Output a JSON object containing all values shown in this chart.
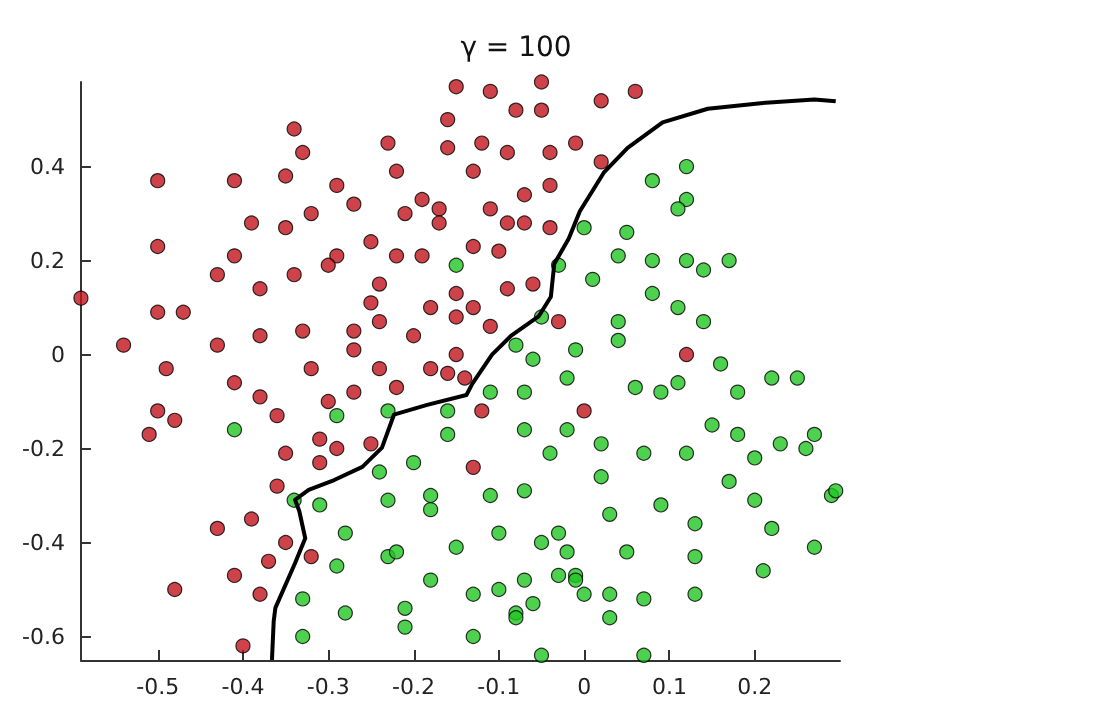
{
  "chart_data": {
    "type": "scatter",
    "title": "γ = 100",
    "xlim": [
      -0.59,
      0.3
    ],
    "ylim": [
      -0.65,
      0.58
    ],
    "xticks": [
      -0.5,
      -0.4,
      -0.3,
      -0.2,
      -0.1,
      0,
      0.1,
      0.2
    ],
    "yticks": [
      -0.6,
      -0.4,
      -0.2,
      0,
      0.2,
      0.4
    ],
    "grid": false,
    "marker": "circle",
    "series": [
      {
        "color": "#c0141c",
        "x": [
          -0.15,
          -0.16,
          -0.16,
          -0.34,
          -0.33,
          -0.23,
          -0.22,
          -0.5,
          -0.41,
          -0.35,
          -0.29,
          -0.27,
          -0.32,
          -0.21,
          -0.19,
          -0.17,
          -0.17,
          -0.39,
          -0.35,
          -0.5,
          -0.41,
          -0.25,
          -0.22,
          -0.19,
          -0.29,
          -0.3,
          -0.43,
          -0.34,
          -0.38,
          -0.24,
          -0.59,
          -0.25,
          -0.15,
          -0.5,
          -0.47,
          -0.18,
          -0.15,
          -0.24,
          -0.54,
          -0.43,
          -0.38,
          -0.33,
          -0.27,
          -0.27,
          -0.2,
          -0.15,
          -0.05,
          0.06,
          -0.11,
          0.02,
          -0.08,
          -0.05,
          -0.12,
          -0.01,
          -0.09,
          -0.04,
          0.02,
          -0.13,
          -0.07,
          -0.04,
          -0.11,
          -0.09,
          -0.07,
          -0.04,
          -0.13,
          -0.1,
          -0.09,
          -0.06,
          -0.13,
          -0.11,
          -0.03,
          0.12,
          -0.49,
          -0.32,
          -0.24,
          -0.18,
          -0.16,
          -0.14,
          -0.41,
          -0.38,
          -0.3,
          -0.27,
          -0.22,
          -0.5,
          -0.48,
          -0.51,
          -0.36,
          -0.31,
          -0.29,
          -0.35,
          -0.31,
          -0.25,
          -0.36,
          -0.39,
          -0.43,
          -0.35,
          -0.37,
          -0.32,
          -0.41,
          -0.48,
          -0.38,
          -0.4,
          -0.12,
          0,
          -0.13
        ],
        "values": [
          0.57,
          0.5,
          0.44,
          0.48,
          0.43,
          0.45,
          0.39,
          0.37,
          0.37,
          0.38,
          0.36,
          0.32,
          0.3,
          0.3,
          0.33,
          0.31,
          0.28,
          0.28,
          0.27,
          0.23,
          0.21,
          0.24,
          0.21,
          0.21,
          0.21,
          0.19,
          0.17,
          0.17,
          0.14,
          0.15,
          0.12,
          0.11,
          0.13,
          0.09,
          0.09,
          0.1,
          0.08,
          0.07,
          0.02,
          0.02,
          0.04,
          0.05,
          0.05,
          0.01,
          0.04,
          0,
          0.58,
          0.56,
          0.56,
          0.54,
          0.52,
          0.52,
          0.45,
          0.45,
          0.43,
          0.43,
          0.41,
          0.39,
          0.34,
          0.36,
          0.31,
          0.28,
          0.28,
          0.27,
          0.23,
          0.22,
          0.14,
          0.15,
          0.1,
          0.06,
          0.07,
          0,
          -0.03,
          -0.03,
          -0.03,
          -0.03,
          -0.04,
          -0.05,
          -0.06,
          -0.09,
          -0.1,
          -0.08,
          -0.07,
          -0.12,
          -0.14,
          -0.17,
          -0.13,
          -0.18,
          -0.2,
          -0.21,
          -0.23,
          -0.19,
          -0.28,
          -0.35,
          -0.37,
          -0.4,
          -0.44,
          -0.43,
          -0.47,
          -0.5,
          -0.51,
          -0.62,
          -0.12,
          -0.12,
          -0.24
        ]
      },
      {
        "color": "#22c622",
        "x": [
          -0.15,
          0.12,
          0.08,
          0.12,
          0.11,
          0,
          0.05,
          0.04,
          0.08,
          0.12,
          0.17,
          0.14,
          -0.03,
          0.01,
          0.08,
          0.11,
          0.14,
          0.04,
          0.04,
          -0.05,
          -0.08,
          -0.06,
          -0.01,
          -0.29,
          -0.23,
          -0.16,
          -0.16,
          -0.41,
          -0.24,
          -0.2,
          -0.18,
          -0.18,
          -0.23,
          -0.31,
          -0.34,
          -0.28,
          -0.23,
          -0.22,
          -0.29,
          -0.18,
          -0.15,
          -0.33,
          -0.28,
          -0.21,
          -0.21,
          -0.33,
          0.16,
          0.22,
          0.25,
          -0.02,
          0.06,
          0.09,
          0.11,
          0.18,
          -0.11,
          -0.07,
          -0.07,
          -0.02,
          0.15,
          0.18,
          0.27,
          0.23,
          0.26,
          0.02,
          0.07,
          0.12,
          0.2,
          -0.04,
          0.02,
          0.17,
          -0.11,
          -0.07,
          0.29,
          0.295,
          0.09,
          0.2,
          0.03,
          0.13,
          0.22,
          -0.1,
          -0.03,
          -0.05,
          -0.02,
          0.05,
          0.13,
          0.27,
          0.21,
          -0.03,
          -0.01,
          -0.01,
          -0.07,
          0,
          -0.1,
          -0.13,
          0.03,
          0.07,
          0.13,
          -0.06,
          -0.08,
          -0.08,
          0.03,
          -0.13,
          -0.05,
          0.07
        ],
        "values": [
          0.19,
          0.4,
          0.37,
          0.33,
          0.31,
          0.27,
          0.26,
          0.21,
          0.2,
          0.2,
          0.2,
          0.18,
          0.19,
          0.16,
          0.13,
          0.1,
          0.07,
          0.07,
          0.03,
          0.08,
          0.02,
          -0.01,
          0.01,
          -0.13,
          -0.12,
          -0.12,
          -0.17,
          -0.16,
          -0.25,
          -0.23,
          -0.3,
          -0.33,
          -0.31,
          -0.32,
          -0.31,
          -0.38,
          -0.43,
          -0.42,
          -0.45,
          -0.48,
          -0.41,
          -0.52,
          -0.55,
          -0.54,
          -0.58,
          -0.6,
          -0.02,
          -0.05,
          -0.05,
          -0.05,
          -0.07,
          -0.08,
          -0.06,
          -0.08,
          -0.08,
          -0.08,
          -0.16,
          -0.16,
          -0.15,
          -0.17,
          -0.17,
          -0.19,
          -0.2,
          -0.19,
          -0.21,
          -0.21,
          -0.22,
          -0.21,
          -0.26,
          -0.27,
          -0.3,
          -0.29,
          -0.3,
          -0.29,
          -0.32,
          -0.31,
          -0.34,
          -0.36,
          -0.37,
          -0.38,
          -0.38,
          -0.4,
          -0.42,
          -0.42,
          -0.43,
          -0.41,
          -0.46,
          -0.47,
          -0.47,
          -0.48,
          -0.48,
          -0.51,
          -0.5,
          -0.51,
          -0.51,
          -0.52,
          -0.51,
          -0.53,
          -0.55,
          -0.56,
          -0.56,
          -0.6,
          -0.64,
          -0.64
        ]
      },
      {
        "type": "line",
        "color": "#000000",
        "marker": "none",
        "x": [
          -0.366,
          -0.364,
          -0.362,
          -0.339,
          -0.327,
          -0.334,
          -0.339,
          -0.323,
          -0.293,
          -0.26,
          -0.237,
          -0.223,
          -0.184,
          -0.138,
          -0.131,
          -0.108,
          -0.085,
          -0.053,
          -0.039,
          -0.035,
          -0.018,
          -0.005,
          0.023,
          0.051,
          0.092,
          0.145,
          0.207,
          0.27,
          0.295
        ],
        "values": [
          -0.65,
          -0.568,
          -0.539,
          -0.444,
          -0.391,
          -0.333,
          -0.309,
          -0.288,
          -0.267,
          -0.239,
          -0.198,
          -0.128,
          -0.107,
          -0.086,
          -0.062,
          0,
          0.041,
          0.082,
          0.123,
          0.193,
          0.247,
          0.305,
          0.387,
          0.44,
          0.494,
          0.523,
          0.535,
          0.543,
          0.539
        ]
      }
    ]
  }
}
